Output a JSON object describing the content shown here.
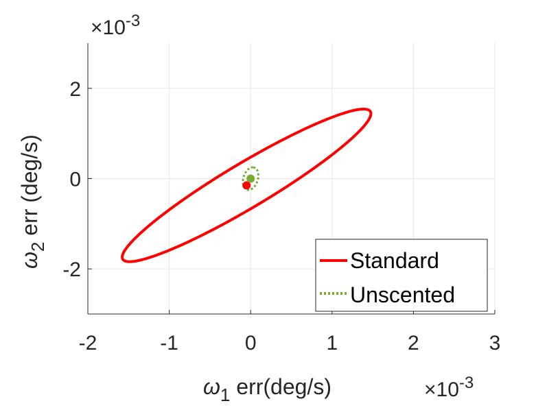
{
  "chart_data": {
    "type": "line",
    "xlabel_symbol": "ω",
    "xlabel_sub": "1",
    "xlabel_text": " err(deg/s)",
    "ylabel_symbol": "ω",
    "ylabel_sub": "2",
    "ylabel_text": " err (deg/s)",
    "x_exponent_prefix": "×10",
    "x_exponent": "-3",
    "y_exponent_prefix": "×10",
    "y_exponent": "-3",
    "xlim": [
      -2,
      3
    ],
    "ylim": [
      -3,
      3
    ],
    "xticks": [
      -2,
      -1,
      0,
      1,
      2,
      3
    ],
    "xtick_labels": [
      "-2",
      "-1",
      "0",
      "1",
      "2",
      "3"
    ],
    "yticks": [
      -2,
      0,
      2
    ],
    "ytick_labels": [
      "-2",
      "0",
      "2"
    ],
    "grid": true,
    "legend_position": "bottom-right",
    "series": [
      {
        "name": "Standard",
        "color": "#ff0000",
        "style": "solid",
        "ellipse": {
          "cx": -0.05,
          "cy": -0.15,
          "ux": [
            1.5,
            1.67
          ],
          "vx": [
            -0.29,
            0.26
          ]
        },
        "center_point": {
          "x": -0.05,
          "y": -0.15
        }
      },
      {
        "name": "Unscented",
        "color": "#77ac30",
        "style": "dotted",
        "ellipse": {
          "cx": 0.0,
          "cy": 0.0,
          "ux": [
            0.03,
            0.25
          ],
          "vx": [
            -0.09,
            0.01
          ]
        },
        "center_point": {
          "x": 0.0,
          "y": 0.0
        }
      }
    ]
  }
}
